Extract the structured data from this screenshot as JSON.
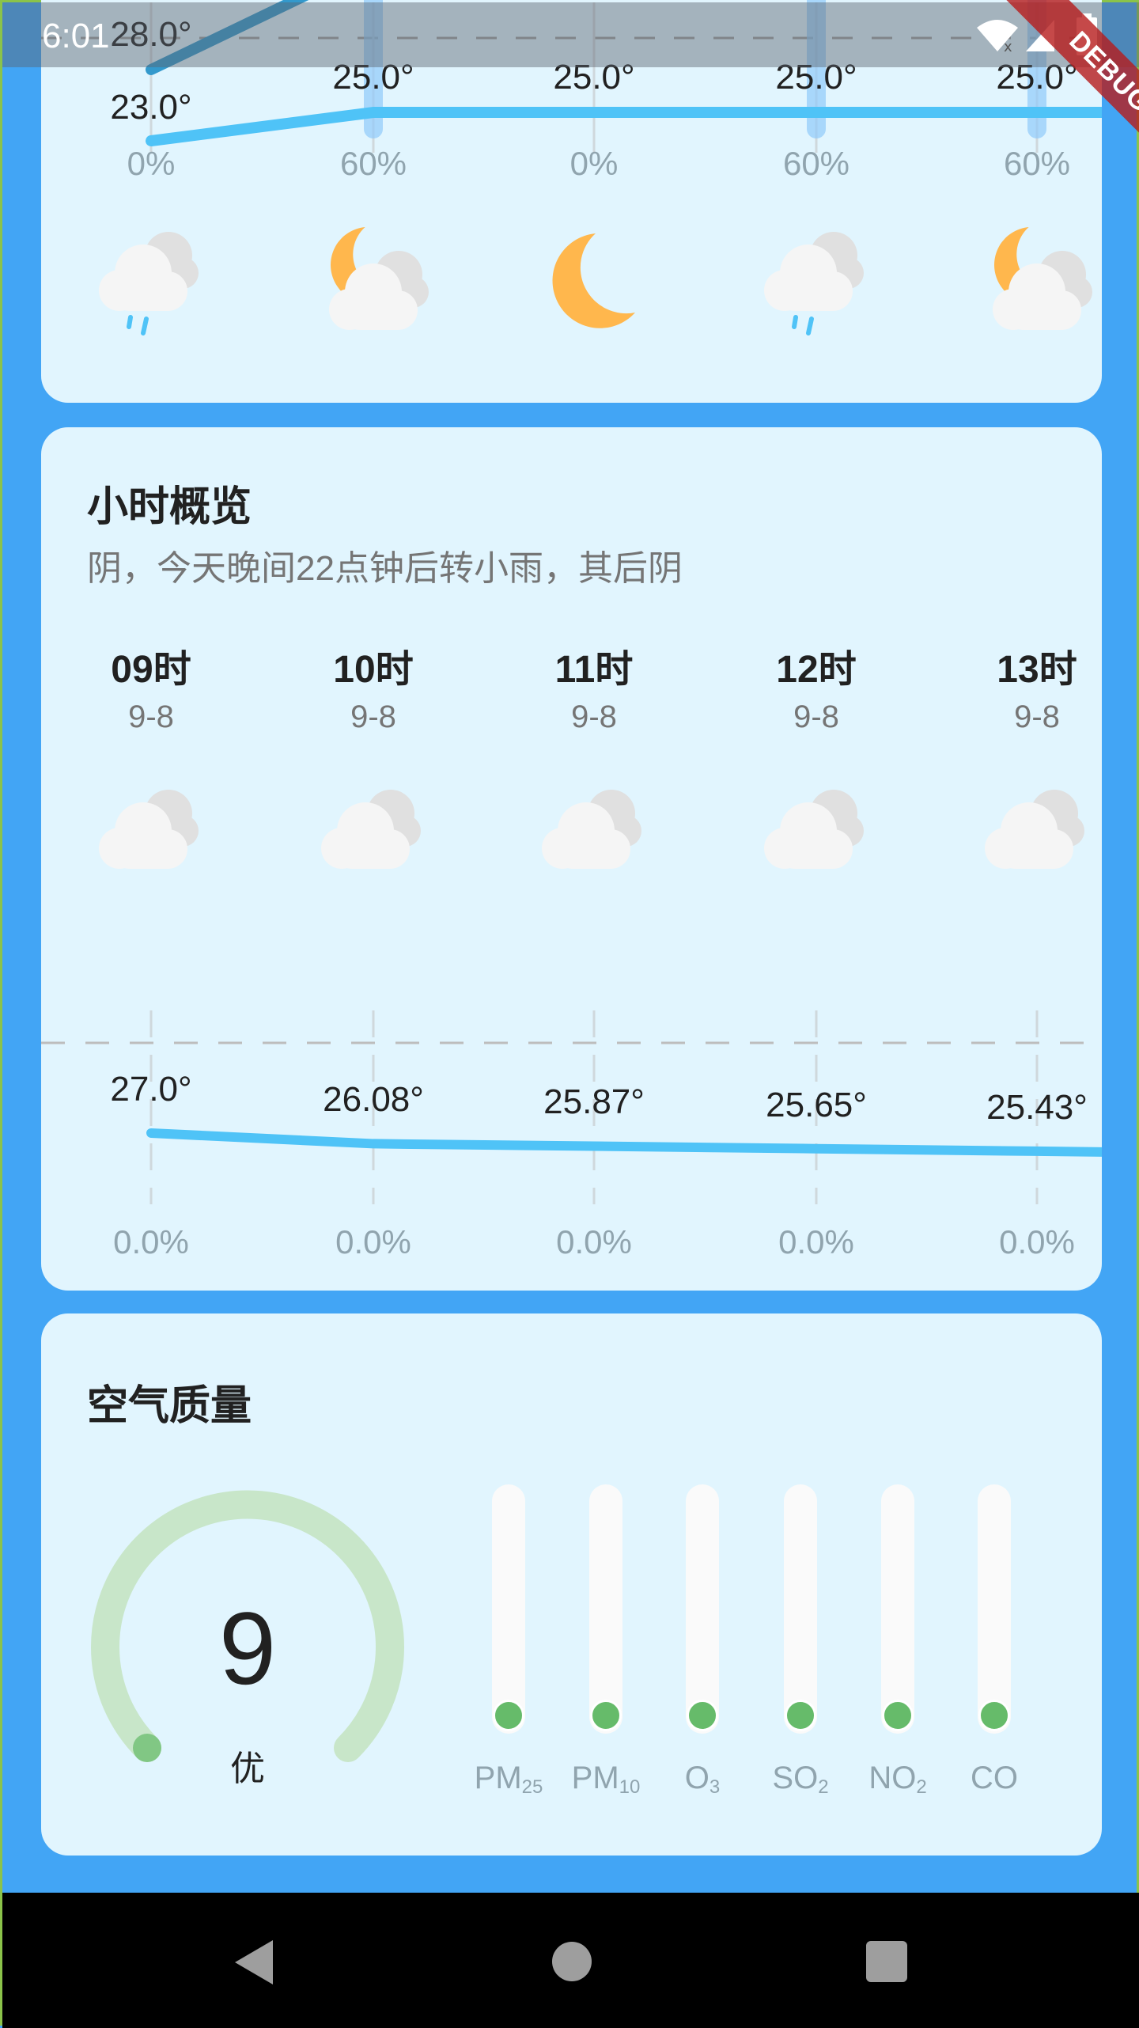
{
  "status_bar": {
    "time": "6:01",
    "icons": [
      "wifi-off-icon",
      "signal-icon",
      "battery-icon"
    ]
  },
  "debug_banner": "DEBUG",
  "daily": {
    "high_labels": [
      "28.0°"
    ],
    "low_labels": [
      "23.0°",
      "25.0°",
      "25.0°",
      "25.0°",
      "25.0°"
    ],
    "low_values": [
      23,
      25,
      25,
      25,
      25
    ],
    "high_values": [
      28
    ],
    "precip_labels": [
      "0%",
      "60%",
      "0%",
      "60%",
      "60%"
    ],
    "precip_values": [
      0,
      60,
      0,
      60,
      60
    ],
    "icons": [
      "rain-cloud-icon",
      "moon-cloud-icon",
      "moon-icon",
      "rain-cloud-icon",
      "moon-cloud-icon"
    ]
  },
  "hourly": {
    "title": "小时概览",
    "summary": "阴，今天晚间22点钟后转小雨，其后阴",
    "hours": [
      "09时",
      "10时",
      "11时",
      "12时",
      "13时"
    ],
    "dates": [
      "9-8",
      "9-8",
      "9-8",
      "9-8",
      "9-8"
    ],
    "icons": [
      "cloud-icon",
      "cloud-icon",
      "cloud-icon",
      "cloud-icon",
      "cloud-icon"
    ],
    "temp_labels": [
      "27.0°",
      "26.08°",
      "25.87°",
      "25.65°",
      "25.43°"
    ],
    "temp_values": [
      27.0,
      26.08,
      25.87,
      25.65,
      25.43
    ],
    "precip_labels": [
      "0.0%",
      "0.0%",
      "0.0%",
      "0.0%",
      "0.0%"
    ]
  },
  "air": {
    "title": "空气质量",
    "aqi": "9",
    "level": "优",
    "pollutants": [
      {
        "name": "PM",
        "sub": "25"
      },
      {
        "name": "PM",
        "sub": "10"
      },
      {
        "name": "O",
        "sub": "3"
      },
      {
        "name": "SO",
        "sub": "2"
      },
      {
        "name": "NO",
        "sub": "2"
      },
      {
        "name": "CO",
        "sub": ""
      }
    ],
    "pollutant_levels": [
      0,
      0,
      0,
      0,
      0,
      0
    ]
  },
  "colors": {
    "background": "#42a5f5",
    "card": "#e1f5fe",
    "line": "#4fc3f7",
    "good": "#66bb6a",
    "gauge_track": "#c8e6c9",
    "moon": "#ffb74d"
  }
}
